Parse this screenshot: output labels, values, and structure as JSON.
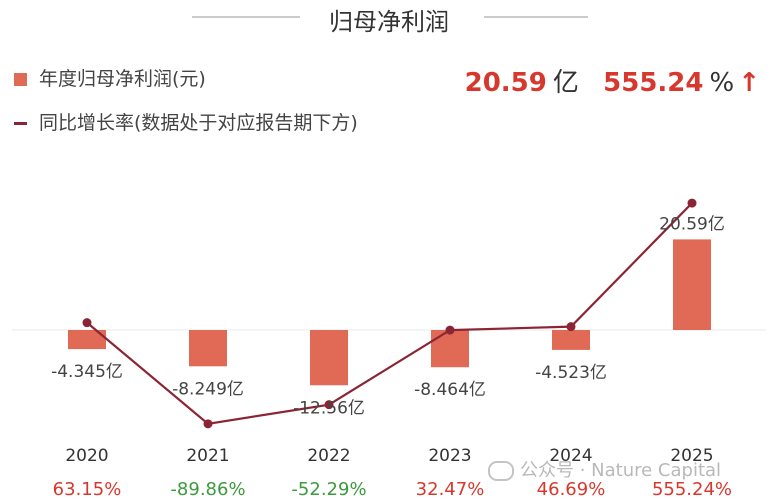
{
  "chart_data": {
    "type": "bar",
    "title": "归母净利润",
    "categories": [
      "2020",
      "2021",
      "2022",
      "2023",
      "2024",
      "2025"
    ],
    "series": [
      {
        "name": "年度归母净利润(元)",
        "type": "bar",
        "values": [
          -4.345,
          -8.249,
          -12.56,
          -8.464,
          -4.523,
          20.59
        ],
        "labels": [
          "-4.345亿",
          "-8.249亿",
          "-12.56亿",
          "-8.464亿",
          "-4.523亿",
          "20.59亿"
        ]
      },
      {
        "name": "同比增长率(数据处于对应报告期下方)",
        "type": "line",
        "values": [
          63.15,
          -89.86,
          -52.29,
          32.47,
          46.69,
          555.24
        ],
        "labels": [
          "63.15%",
          "-89.86%",
          "-52.29%",
          "32.47%",
          "46.69%",
          "555.24%"
        ]
      }
    ],
    "colors": {
      "bar": "#e06a55",
      "line": "#8b2535",
      "positive": "#d7382d",
      "negative": "#3d9a3d"
    },
    "legend_position": "top-left"
  },
  "headline": {
    "value": "20.59",
    "value_unit": "亿",
    "growth": "555.24",
    "growth_unit": "%",
    "arrow": "↑"
  },
  "watermark": {
    "text": "公众号 · Nature Capital"
  }
}
